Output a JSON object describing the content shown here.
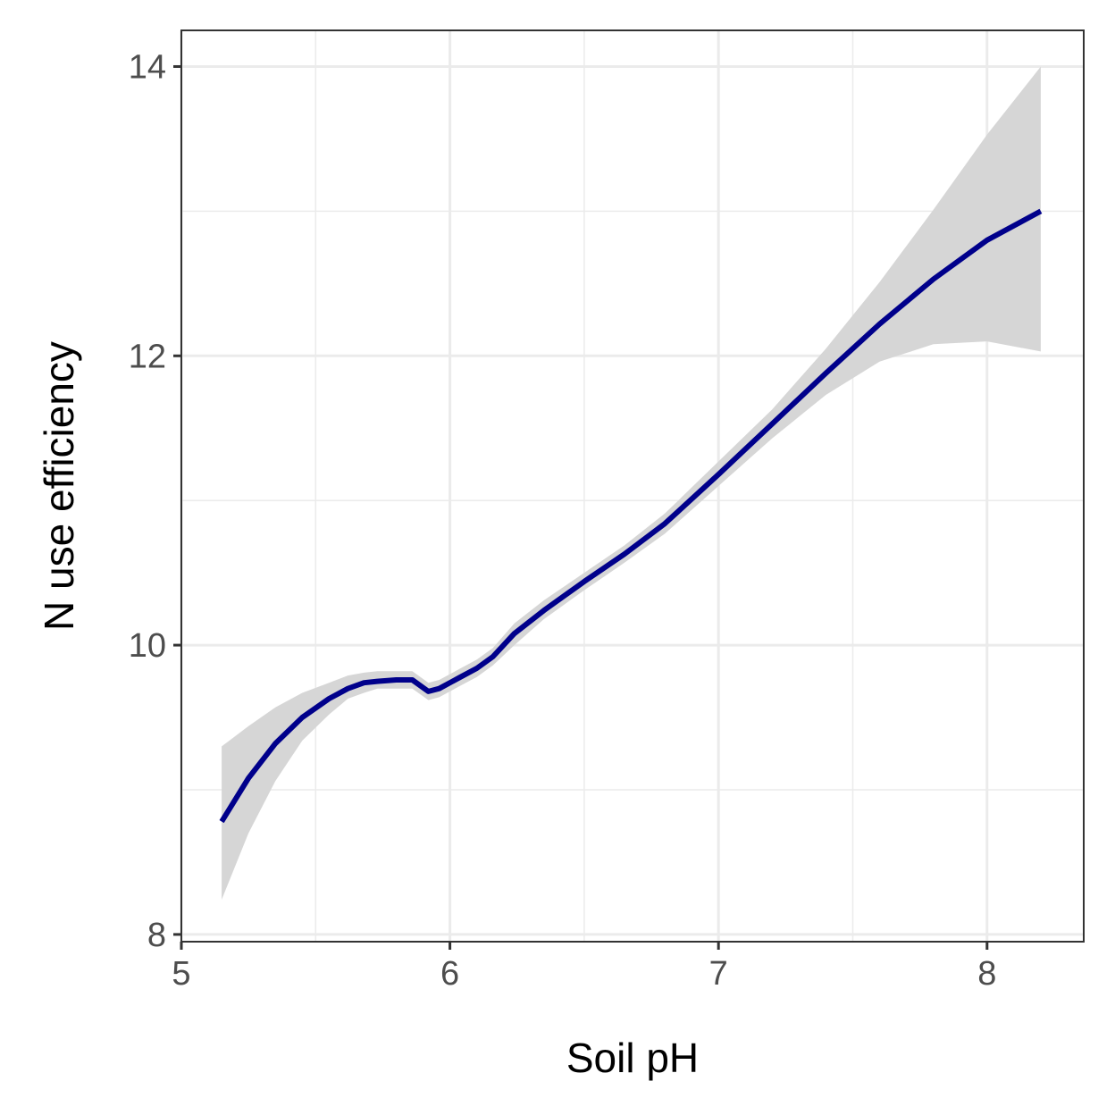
{
  "chart_data": {
    "type": "line",
    "title": "",
    "xlabel": "Soil pH",
    "ylabel": "N use efficiency",
    "xlim": [
      5.0,
      8.36
    ],
    "ylim": [
      7.95,
      14.25
    ],
    "x_ticks": [
      5,
      6,
      7,
      8
    ],
    "y_ticks": [
      8,
      10,
      12,
      14
    ],
    "x_tick_labels": [
      "5",
      "6",
      "7",
      "8"
    ],
    "y_tick_labels": [
      "8",
      "10",
      "12",
      "14"
    ],
    "x_minor_grid": [
      5.5,
      6.5,
      7.5
    ],
    "y_minor_grid": [
      9,
      11,
      13
    ],
    "grid": true,
    "legend": "none",
    "series": [
      {
        "x": [
          5.15,
          5.25,
          5.35,
          5.45,
          5.55,
          5.62,
          5.68,
          5.73,
          5.8,
          5.86,
          5.92,
          5.96,
          6.04,
          6.1,
          6.16,
          6.24,
          6.35,
          6.5,
          6.65,
          6.8,
          7.0,
          7.2,
          7.4,
          7.6,
          7.8,
          8.0,
          8.2
        ],
        "y": [
          8.78,
          9.08,
          9.32,
          9.5,
          9.63,
          9.7,
          9.74,
          9.75,
          9.76,
          9.76,
          9.68,
          9.7,
          9.78,
          9.84,
          9.92,
          10.08,
          10.24,
          10.44,
          10.63,
          10.84,
          11.18,
          11.53,
          11.88,
          12.22,
          12.53,
          12.8,
          13.0
        ],
        "lower": [
          8.24,
          8.7,
          9.06,
          9.34,
          9.52,
          9.63,
          9.67,
          9.7,
          9.7,
          9.7,
          9.62,
          9.64,
          9.72,
          9.78,
          9.86,
          10.0,
          10.18,
          10.38,
          10.57,
          10.77,
          11.1,
          11.43,
          11.73,
          11.96,
          12.08,
          12.1,
          12.03
        ],
        "upper": [
          9.3,
          9.44,
          9.57,
          9.67,
          9.74,
          9.79,
          9.81,
          9.82,
          9.82,
          9.82,
          9.74,
          9.76,
          9.84,
          9.9,
          9.98,
          10.15,
          10.31,
          10.5,
          10.69,
          10.91,
          11.27,
          11.63,
          12.05,
          12.51,
          13.01,
          13.53,
          14.0
        ]
      }
    ],
    "colors": {
      "line": "#00008B",
      "ribbon": "#d6d6d6",
      "grid": "#ebebeb",
      "panel_border": "#333333",
      "tick_text": "#4d4d4d",
      "axis_title": "#000000"
    }
  }
}
